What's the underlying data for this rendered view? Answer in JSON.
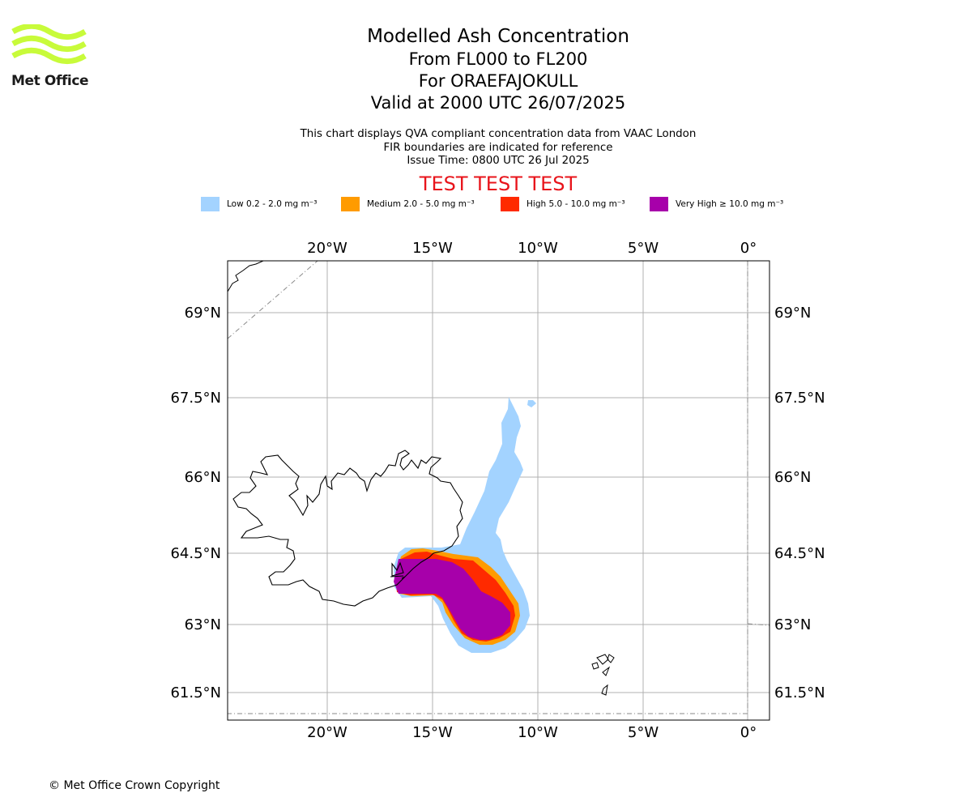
{
  "logo": {
    "name": "Met Office"
  },
  "header": {
    "title": "Modelled Ash Concentration",
    "range": "From FL000 to FL200",
    "volcano": "For ORAEFAJOKULL",
    "valid": "Valid at 2000 UTC 26/07/2025"
  },
  "info": {
    "line1": "This chart displays QVA compliant concentration data from VAAC London",
    "line2": "FIR boundaries are indicated for reference",
    "line3": "Issue Time: 0800 UTC 26 Jul 2025"
  },
  "test_banner": "TEST TEST TEST",
  "legend": [
    {
      "label": "Low 0.2 - 2.0 mg m⁻³",
      "color": "#a3d3ff"
    },
    {
      "label": "Medium 2.0 - 5.0 mg m⁻³",
      "color": "#ff9b00"
    },
    {
      "label": "High 5.0 - 10.0 mg m⁻³",
      "color": "#ff2a00"
    },
    {
      "label": "Very High ≥ 10.0 mg m⁻³",
      "color": "#a700aa"
    }
  ],
  "map": {
    "lon_labels": [
      "20°W",
      "15°W",
      "10°W",
      "5°W",
      "0°"
    ],
    "lat_labels": [
      "69°N",
      "67.5°N",
      "66°N",
      "64.5°N",
      "63°N",
      "61.5°N"
    ]
  },
  "copyright": "© Met Office Crown Copyright"
}
